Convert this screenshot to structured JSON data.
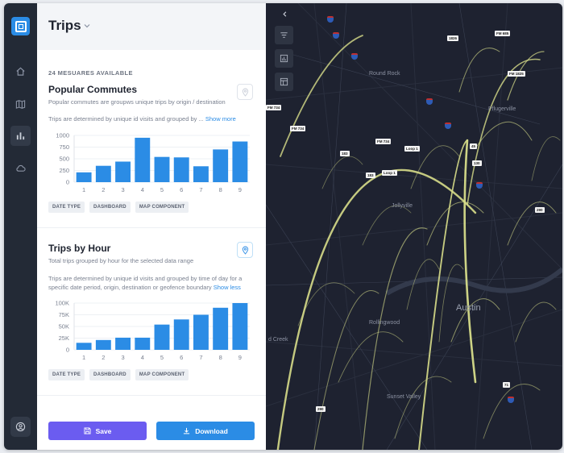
{
  "colors": {
    "rail": "#232a36",
    "accent_blue": "#2b8ce5",
    "accent_purple": "#6b5cf0",
    "bar": "#2b8ce5",
    "map_bg": "#1e2230",
    "arc": "#d7dd8a"
  },
  "rail": {
    "icons": [
      "logo-icon",
      "home-icon",
      "map-icon",
      "chart-icon",
      "cloud-icon",
      "user-icon"
    ]
  },
  "panel": {
    "title": "Trips",
    "measures": "24 MESUARES AVAILABLE",
    "cards": [
      {
        "title": "Popular Commutes",
        "subtitle": "Popular commutes are groupws unique trips by origin / destination",
        "description": "Trips are determined by unique id visits and grouped by ...",
        "link": "Show more",
        "tags": [
          "DATE TYPE",
          "DASHBOARD",
          "MAP COMPONENT"
        ]
      },
      {
        "title": "Trips by Hour",
        "subtitle": "Total trips grouped by hour for the selected data range",
        "description": "Trips are determined by unique id visits and grouped by time of day for a specific date period, origin, destination or geofence boundary",
        "link": "Show less",
        "tags": [
          "DATE TYPE",
          "DASHBOARD",
          "MAP COMPONENT"
        ]
      }
    ],
    "save_label": "Save",
    "download_label": "Download"
  },
  "chart_data": [
    {
      "type": "bar",
      "categories": [
        "1",
        "2",
        "3",
        "4",
        "5",
        "6",
        "7",
        "8",
        "9"
      ],
      "values": [
        210,
        350,
        440,
        950,
        540,
        530,
        340,
        700,
        870
      ],
      "yticks": [
        "1000",
        "750",
        "500",
        "250",
        "0"
      ],
      "ylim": [
        0,
        1000
      ],
      "xlabel": "",
      "ylabel": ""
    },
    {
      "type": "bar",
      "categories": [
        "1",
        "2",
        "3",
        "4",
        "5",
        "6",
        "7",
        "8",
        "9"
      ],
      "values": [
        15000,
        21000,
        26000,
        26000,
        54000,
        65000,
        75000,
        90000,
        100000
      ],
      "yticks": [
        "100K",
        "75K",
        "50K",
        "25K",
        "0"
      ],
      "ylim": [
        0,
        100000
      ],
      "xlabel": "",
      "ylabel": ""
    }
  ],
  "map": {
    "cities": {
      "round_rock": "Round Rock",
      "pflugerville": "Pflugerville",
      "austin": "Austin",
      "rollingwood": "Rollingwood",
      "sunset_valley": "Sunset Valley",
      "sun_creek": "d Creek",
      "jollyville": "Jollyville"
    },
    "highways": [
      "FM 685",
      "FM 1825",
      "FM 734",
      "FM 734",
      "FM 734",
      "Loop 1",
      "Loop 1",
      "183",
      "183",
      "290",
      "290",
      "71",
      "1826",
      "45",
      "130"
    ]
  }
}
